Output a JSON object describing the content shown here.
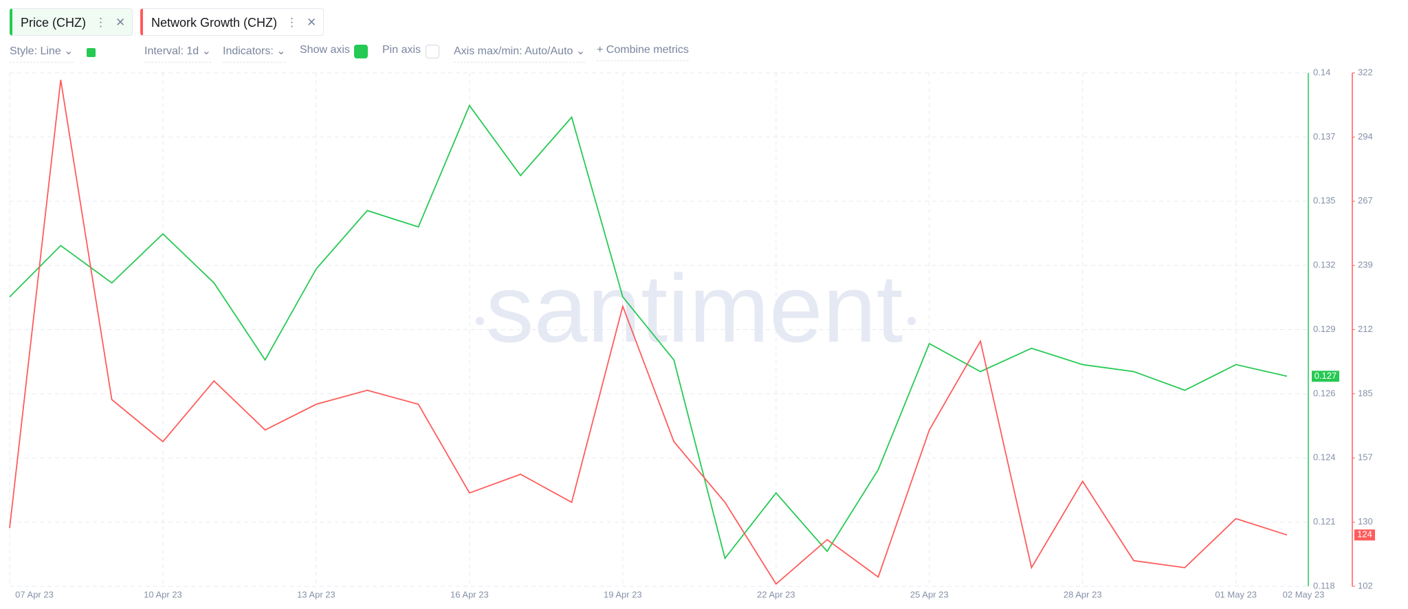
{
  "toolbar": {
    "style": "Style: Line",
    "interval": "Interval: 1d",
    "indicators": "Indicators:",
    "show_axis": "Show axis",
    "pin_axis": "Pin axis",
    "axis_maxmin": "Axis max/min: Auto/Auto",
    "combine": "Combine metrics"
  },
  "watermark": "santiment",
  "chart_data": {
    "type": "line",
    "categories": [
      "07 Apr 23",
      null,
      null,
      "10 Apr 23",
      null,
      null,
      "13 Apr 23",
      null,
      null,
      "16 Apr 23",
      null,
      null,
      "19 Apr 23",
      null,
      null,
      "22 Apr 23",
      null,
      null,
      "25 Apr 23",
      null,
      null,
      "28 Apr 23",
      null,
      null,
      "01 May 23",
      "02 May 23"
    ],
    "series": [
      {
        "name": "Price (CHZ)",
        "color": "#26c953",
        "values": [
          0.1304,
          0.1326,
          0.131,
          0.1331,
          0.131,
          0.1277,
          0.1316,
          0.1341,
          0.1334,
          0.1386,
          0.1356,
          0.1381,
          0.1304,
          0.1277,
          0.1192,
          0.122,
          0.1195,
          0.123,
          0.1284,
          0.1272,
          0.1282,
          0.1275,
          0.1272,
          0.1264,
          0.1275,
          0.127
        ]
      },
      {
        "name": "Network Growth (CHZ)",
        "color": "#ff5b5b",
        "axis": "y2",
        "values": [
          127,
          319,
          182,
          164,
          190,
          169,
          180,
          186,
          180,
          142,
          150,
          138,
          222,
          164,
          138,
          103,
          122,
          106,
          169,
          207,
          110,
          147,
          113,
          110,
          131,
          124
        ]
      }
    ],
    "ylim": [
      0.118,
      0.14
    ],
    "yticks": [
      0.118,
      {
        "value": 0.12075,
        "label": "0.121"
      },
      {
        "value": 0.1235,
        "label": "0.124"
      },
      {
        "value": 0.12625,
        "label": "0.126"
      },
      0.129,
      {
        "value": 0.13175,
        "label": "0.132"
      },
      {
        "value": 0.1345,
        "label": "0.135"
      },
      {
        "value": 0.13725,
        "label": "0.137"
      },
      0.14
    ],
    "y2lim": [
      102,
      322
    ],
    "y2ticks": [
      102,
      {
        "value": 129.5,
        "label": "130"
      },
      157,
      {
        "value": 184.5,
        "label": "185"
      },
      212,
      {
        "value": 239.5,
        "label": "239"
      },
      267,
      {
        "value": 294.5,
        "label": "294"
      },
      322
    ],
    "grid": true
  }
}
